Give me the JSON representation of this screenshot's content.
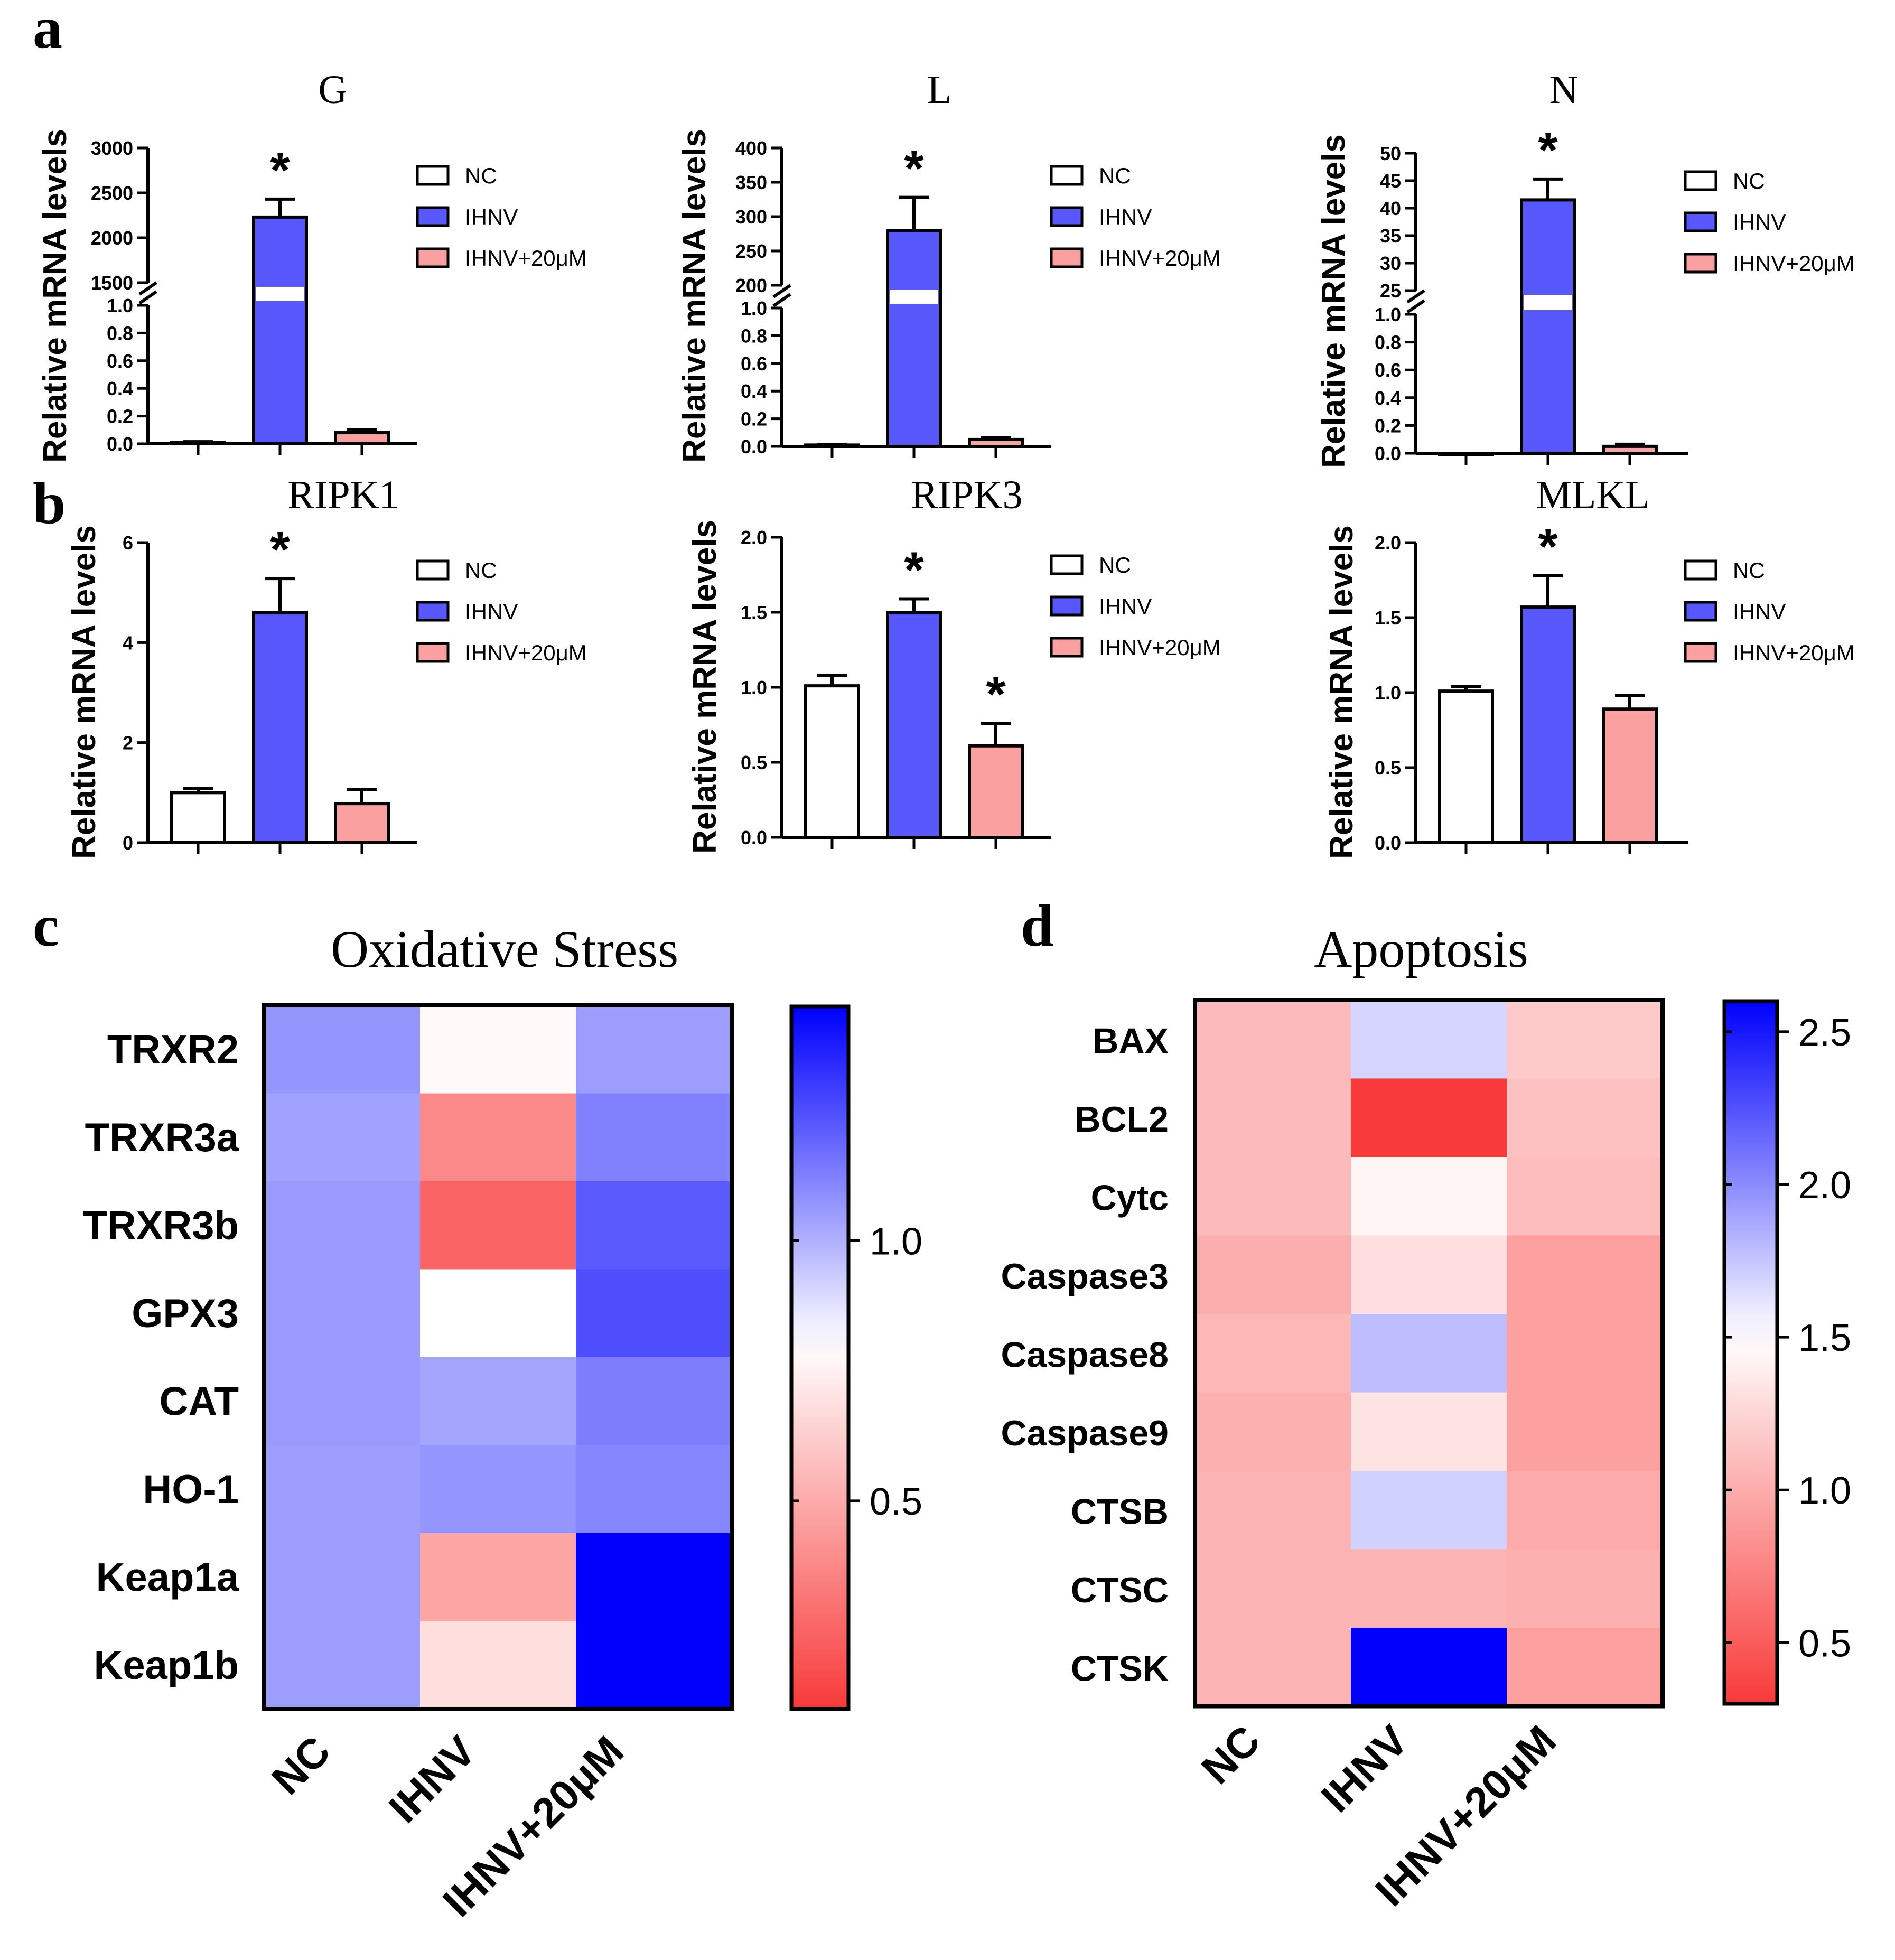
{
  "panel_letters": [
    "a",
    "b",
    "c",
    "d"
  ],
  "bar_legend": [
    "NC",
    "IHNV",
    "IHNV+20μM"
  ],
  "chart_data": [
    {
      "type": "bar",
      "panel": "a",
      "title": "G",
      "ylabel": "Relative mRNA levels",
      "categories": [
        "NC",
        "IHNV",
        "IHNV+20μM"
      ],
      "values": [
        0.01,
        2230,
        0.08
      ],
      "errors": [
        0.005,
        200,
        0.02
      ],
      "broken_axis": {
        "lower_range": [
          0,
          1.0
        ],
        "upper_range": [
          1500,
          3000
        ]
      },
      "lower_ticks": [
        "0.0",
        "0.2",
        "0.4",
        "0.6",
        "0.8",
        "1.0"
      ],
      "upper_ticks": [
        "1500",
        "2000",
        "2500",
        "3000"
      ],
      "significance": [
        "",
        "*",
        ""
      ]
    },
    {
      "type": "bar",
      "panel": "a",
      "title": "L",
      "ylabel": "Relative mRNA levels",
      "categories": [
        "NC",
        "IHNV",
        "IHNV+20μM"
      ],
      "values": [
        0.01,
        280,
        0.05
      ],
      "errors": [
        0.005,
        48,
        0.015
      ],
      "broken_axis": {
        "lower_range": [
          0,
          1.0
        ],
        "upper_range": [
          200,
          400
        ]
      },
      "lower_ticks": [
        "0.0",
        "0.2",
        "0.4",
        "0.6",
        "0.8",
        "1.0"
      ],
      "upper_ticks": [
        "200",
        "250",
        "300",
        "350",
        "400"
      ],
      "significance": [
        "",
        "*",
        ""
      ]
    },
    {
      "type": "bar",
      "panel": "a",
      "title": "N",
      "ylabel": "Relative mRNA levels",
      "categories": [
        "NC",
        "IHNV",
        "IHNV+20μM"
      ],
      "values": [
        0.0,
        41.5,
        0.05
      ],
      "errors": [
        0,
        3.8,
        0.015
      ],
      "broken_axis": {
        "lower_range": [
          0,
          1.0
        ],
        "upper_range": [
          25,
          50
        ]
      },
      "lower_ticks": [
        "0.0",
        "0.2",
        "0.4",
        "0.6",
        "0.8",
        "1.0"
      ],
      "upper_ticks": [
        "25",
        "30",
        "35",
        "40",
        "45",
        "50"
      ],
      "significance": [
        "",
        "*",
        ""
      ]
    },
    {
      "type": "bar",
      "panel": "b",
      "title": "RIPK1",
      "ylabel": "Relative mRNA levels",
      "categories": [
        "NC",
        "IHNV",
        "IHNV+20μM"
      ],
      "values": [
        1.0,
        4.6,
        0.78
      ],
      "errors": [
        0.08,
        0.68,
        0.28
      ],
      "ylim": [
        0,
        6
      ],
      "ticks": [
        "0",
        "2",
        "4",
        "6"
      ],
      "tick_values": [
        0,
        2,
        4,
        6
      ],
      "significance": [
        "",
        "*",
        ""
      ]
    },
    {
      "type": "bar",
      "panel": "b",
      "title": "RIPK3",
      "ylabel": "Relative mRNA levels",
      "categories": [
        "NC",
        "IHNV",
        "IHNV+20μM"
      ],
      "values": [
        1.01,
        1.5,
        0.61
      ],
      "errors": [
        0.07,
        0.09,
        0.15
      ],
      "ylim": [
        0,
        2.0
      ],
      "ticks": [
        "0.0",
        "0.5",
        "1.0",
        "1.5",
        "2.0"
      ],
      "tick_values": [
        0,
        0.5,
        1.0,
        1.5,
        2.0
      ],
      "significance": [
        "",
        "*",
        "*"
      ]
    },
    {
      "type": "bar",
      "panel": "b",
      "title": "MLKL",
      "ylabel": "Relative mRNA levels",
      "categories": [
        "NC",
        "IHNV",
        "IHNV+20μM"
      ],
      "values": [
        1.01,
        1.57,
        0.89
      ],
      "errors": [
        0.03,
        0.21,
        0.09
      ],
      "ylim": [
        0,
        2.0
      ],
      "ticks": [
        "0.0",
        "0.5",
        "1.0",
        "1.5",
        "2.0"
      ],
      "tick_values": [
        0,
        0.5,
        1.0,
        1.5,
        2.0
      ],
      "significance": [
        "",
        "*",
        ""
      ]
    },
    {
      "type": "heatmap",
      "panel": "c",
      "title": "Oxidative Stress",
      "rows": [
        "TRXR2",
        "TRXR3a",
        "TRXR3b",
        "GPX3",
        "CAT",
        "HO-1",
        "Keap1a",
        "Keap1b"
      ],
      "columns": [
        "NC",
        "IHNV",
        "IHNV+20μM"
      ],
      "values": [
        [
          1.07,
          0.78,
          1.05
        ],
        [
          1.04,
          0.38,
          1.12
        ],
        [
          1.06,
          0.25,
          1.22
        ],
        [
          1.06,
          0.8,
          1.25
        ],
        [
          1.06,
          1.03,
          1.13
        ],
        [
          1.05,
          1.07,
          1.11
        ],
        [
          1.05,
          0.48,
          1.45
        ],
        [
          1.05,
          0.68,
          1.45
        ]
      ],
      "color_range": [
        0.1,
        1.45
      ],
      "colorbar_ticks": [
        "0.5",
        "1.0"
      ],
      "colorbar_tick_values": [
        0.5,
        1.0
      ]
    },
    {
      "type": "heatmap",
      "panel": "d",
      "title": "Apoptosis",
      "rows": [
        "BAX",
        "BCL2",
        "Cytc",
        "Caspase3",
        "Caspase8",
        "Caspase9",
        "CTSB",
        "CTSC",
        "CTSK"
      ],
      "columns": [
        "NC",
        "IHNV",
        "IHNV+20μM"
      ],
      "values": [
        [
          1.08,
          1.68,
          1.18
        ],
        [
          1.08,
          0.3,
          1.12
        ],
        [
          1.08,
          1.44,
          1.1
        ],
        [
          1.0,
          1.3,
          0.92
        ],
        [
          1.06,
          1.78,
          0.92
        ],
        [
          1.02,
          1.33,
          0.92
        ],
        [
          1.04,
          1.7,
          0.98
        ],
        [
          1.04,
          1.04,
          1.02
        ],
        [
          1.04,
          2.6,
          0.92
        ]
      ],
      "color_range": [
        0.3,
        2.6
      ],
      "colorbar_ticks": [
        "0.5",
        "1.0",
        "1.5",
        "2.0",
        "2.5"
      ],
      "colorbar_tick_values": [
        0.5,
        1.0,
        1.5,
        2.0,
        2.5
      ]
    }
  ]
}
